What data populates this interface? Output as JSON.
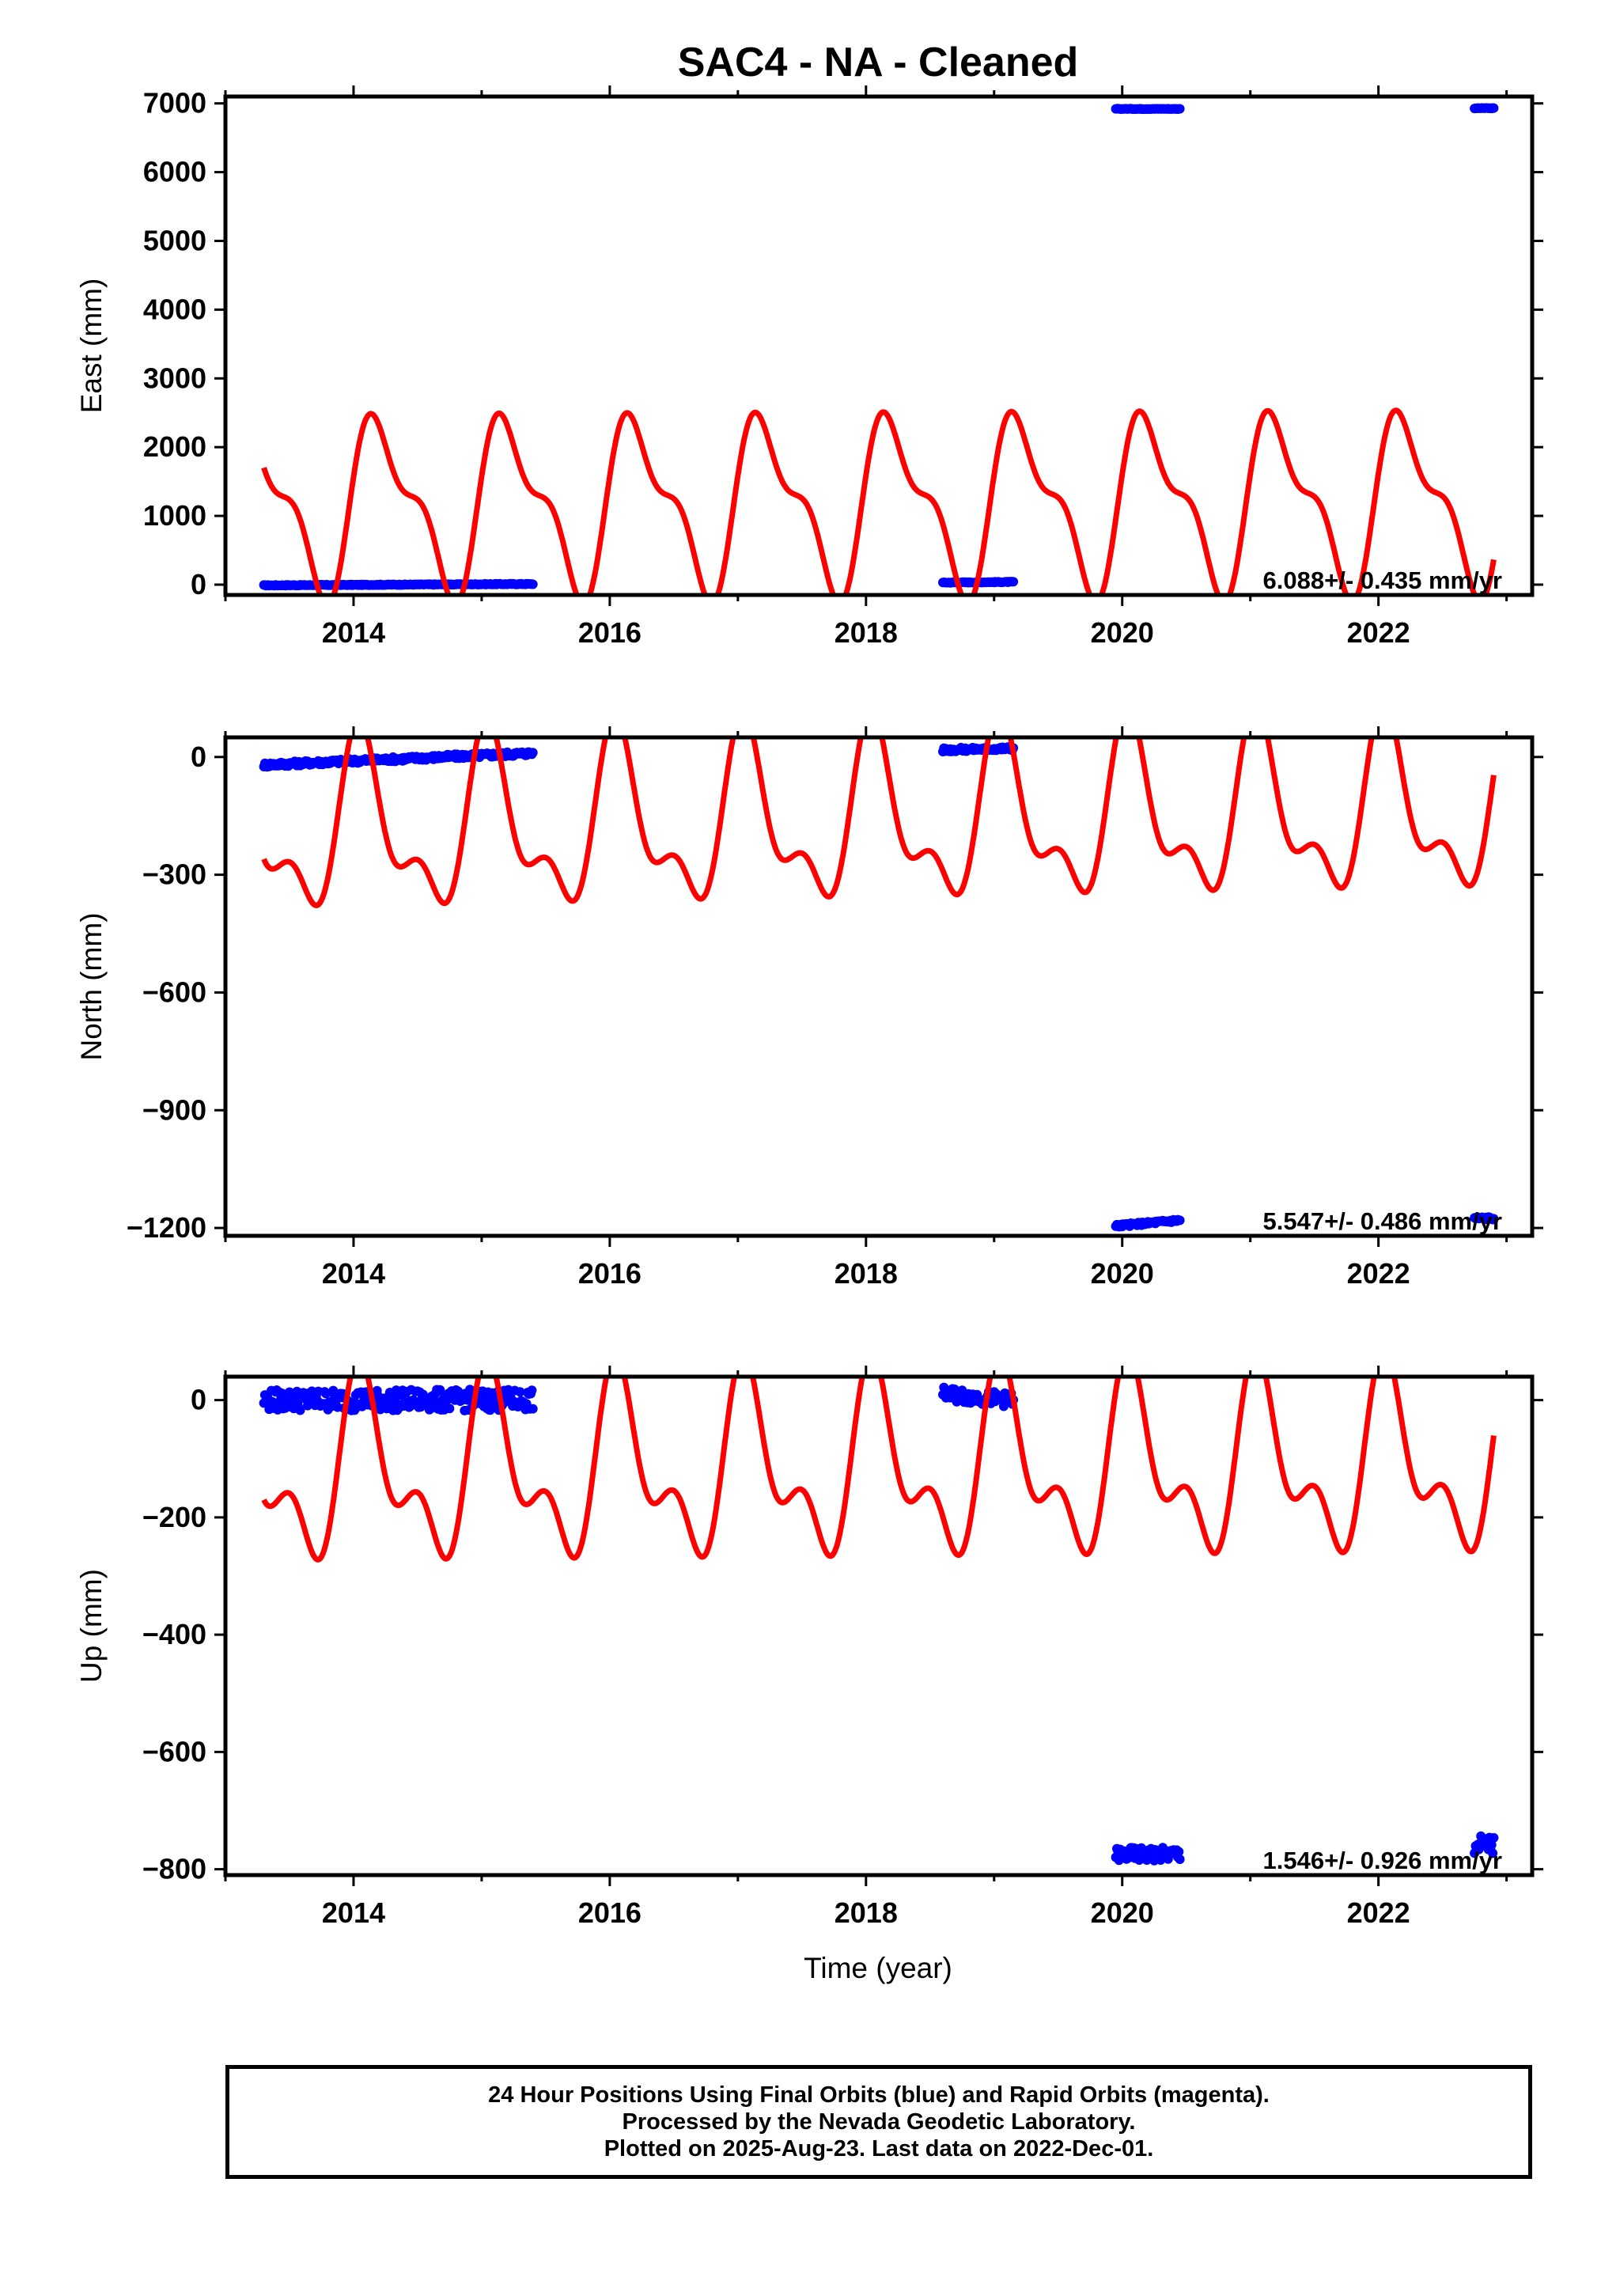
{
  "title": "SAC4  - NA - Cleaned",
  "xlabel": "Time (year)",
  "colors": {
    "data": "#0000ff",
    "model": "#ff0000",
    "frame": "#000000"
  },
  "footer": {
    "line1": "24 Hour Positions Using Final Orbits (blue) and Rapid Orbits (magenta).",
    "line2": "Processed by the Nevada Geodetic Laboratory.",
    "line3": "Plotted on 2025-Aug-23. Last data on 2022-Dec-01."
  },
  "chart_data": [
    {
      "type": "scatter",
      "panel": "east",
      "ylabel": "East (mm)",
      "xlim": [
        2013.0,
        2023.2
      ],
      "ylim": [
        -150,
        7100
      ],
      "xticks": [
        2014,
        2016,
        2018,
        2020,
        2022
      ],
      "yticks": [
        0,
        1000,
        2000,
        3000,
        4000,
        5000,
        6000,
        7000
      ],
      "rate_label": "6.088+/- 0.435 mm/yr",
      "observed_segments": [
        {
          "x_start": 2013.3,
          "x_end": 2015.4,
          "y_start": -10,
          "y_end": 10,
          "scatter": 6
        },
        {
          "x_start": 2018.6,
          "x_end": 2019.15,
          "y_start": 30,
          "y_end": 40,
          "scatter": 6
        },
        {
          "x_start": 2019.95,
          "x_end": 2020.45,
          "y_start": 6920,
          "y_end": 6920,
          "scatter": 4
        },
        {
          "x_start": 2022.75,
          "x_end": 2022.9,
          "y_start": 6930,
          "y_end": 6930,
          "scatter": 4
        }
      ],
      "model": {
        "offset": 1150,
        "trend_mm_per_yr": 6.088,
        "annual_cos": 1000,
        "annual_sin": -500,
        "semiannual_cos": -450,
        "semiannual_sin": -200,
        "x_start": 2013.3,
        "x_end": 2022.9
      }
    },
    {
      "type": "scatter",
      "panel": "north",
      "ylabel": "North (mm)",
      "xlim": [
        2013.0,
        2023.2
      ],
      "ylim": [
        -1220,
        50
      ],
      "xticks": [
        2014,
        2016,
        2018,
        2020,
        2022
      ],
      "yticks": [
        0,
        -300,
        -600,
        -900,
        -1200
      ],
      "rate_label": "5.547+/- 0.486 mm/yr",
      "observed_segments": [
        {
          "x_start": 2013.3,
          "x_end": 2015.4,
          "y_start": -20,
          "y_end": 10,
          "scatter": 6
        },
        {
          "x_start": 2018.6,
          "x_end": 2019.15,
          "y_start": 18,
          "y_end": 22,
          "scatter": 5
        },
        {
          "x_start": 2019.95,
          "x_end": 2020.45,
          "y_start": -1195,
          "y_end": -1180,
          "scatter": 4
        },
        {
          "x_start": 2022.75,
          "x_end": 2022.9,
          "y_start": -1175,
          "y_end": -1175,
          "scatter": 4
        }
      ],
      "model": {
        "offset": -190,
        "trend_mm_per_yr": 5.547,
        "annual_cos": 25,
        "annual_sin": -190,
        "semiannual_cos": -95,
        "semiannual_sin": 30,
        "x_start": 2013.3,
        "x_end": 2022.9
      }
    },
    {
      "type": "scatter",
      "panel": "up",
      "ylabel": "Up (mm)",
      "xlim": [
        2013.0,
        2023.2
      ],
      "ylim": [
        -810,
        40
      ],
      "xticks": [
        2014,
        2016,
        2018,
        2020,
        2022
      ],
      "yticks": [
        0,
        -200,
        -400,
        -600,
        -800
      ],
      "rate_label": "1.546+/- 0.926 mm/yr",
      "observed_segments": [
        {
          "x_start": 2013.3,
          "x_end": 2015.4,
          "y_start": 0,
          "y_end": 0,
          "scatter": 18
        },
        {
          "x_start": 2018.6,
          "x_end": 2019.15,
          "y_start": 10,
          "y_end": 0,
          "scatter": 12
        },
        {
          "x_start": 2019.95,
          "x_end": 2020.45,
          "y_start": -775,
          "y_end": -775,
          "scatter": 12
        },
        {
          "x_start": 2022.75,
          "x_end": 2022.9,
          "y_start": -760,
          "y_end": -760,
          "scatter": 18
        }
      ],
      "model": {
        "offset": -125,
        "trend_mm_per_yr": 1.546,
        "annual_cos": 30,
        "annual_sin": -125,
        "semiannual_cos": -75,
        "semiannual_sin": 25,
        "x_start": 2013.3,
        "x_end": 2022.9
      }
    }
  ]
}
